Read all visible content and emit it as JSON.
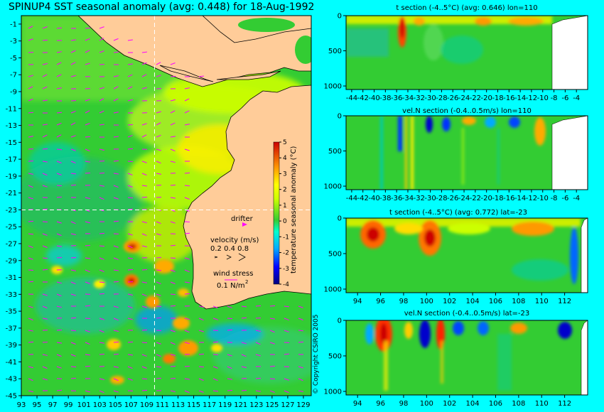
{
  "chart_data": [
    {
      "type": "heatmap",
      "title": "SPINUP4 SST seasonal anomaly (avg: 0.448) for 18-Aug-1992",
      "x_ticks": [
        "93",
        "95",
        "97",
        "99",
        "101",
        "103",
        "105",
        "107",
        "109",
        "111",
        "113",
        "115",
        "117",
        "119",
        "121",
        "123",
        "125",
        "127",
        "129"
      ],
      "y_ticks": [
        "-1",
        "-3",
        "-5",
        "-7",
        "-9",
        "-11",
        "-13",
        "-15",
        "-17",
        "-19",
        "-21",
        "-23",
        "-25",
        "-27",
        "-29",
        "-31",
        "-33",
        "-35",
        "-37",
        "-39",
        "-41",
        "-43",
        "-45"
      ],
      "xlim": [
        93,
        130
      ],
      "ylim": [
        -45,
        0
      ],
      "colorbar": {
        "label": "temperature seasonal anomaly (°C)",
        "ticks": [
          "5",
          "4",
          "3",
          "2",
          "1",
          "0",
          "-1",
          "-2",
          "-3",
          "-4"
        ],
        "range": [
          -4,
          5
        ]
      },
      "annotations": {
        "drifter": "drifter",
        "velocity_label": "velocity (m/s)",
        "velocity_scale": "0.2 0.4 0.8",
        "wind_label": "wind stress",
        "wind_scale": "0.1 N/m",
        "wind_exp": "2"
      },
      "crosshair": {
        "lon": 110,
        "lat": -23
      },
      "copyright": "© Copyright CSIRO 2005"
    },
    {
      "type": "heatmap",
      "title": "t section (-4..5°C) (avg: 0.646) lon=110",
      "x_ticks": [
        "-44",
        "-42",
        "-40",
        "-38",
        "-36",
        "-34",
        "-32",
        "-30",
        "-28",
        "-26",
        "-24",
        "-22",
        "-20",
        "-18",
        "-16",
        "-14",
        "-12",
        "-10",
        "-8",
        "-6",
        "-4"
      ],
      "y_ticks": [
        "0",
        "500",
        "1000"
      ],
      "xlim": [
        -45,
        -2
      ],
      "ylim": [
        1050,
        0
      ]
    },
    {
      "type": "heatmap",
      "title": "vel.N section (-0.4..0.5m/s) lon=110",
      "x_ticks": [
        "-44",
        "-42",
        "-40",
        "-38",
        "-36",
        "-34",
        "-32",
        "-30",
        "-28",
        "-26",
        "-24",
        "-22",
        "-20",
        "-18",
        "-16",
        "-14",
        "-12",
        "-10",
        "-8",
        "-6",
        "-4"
      ],
      "y_ticks": [
        "0",
        "500",
        "1000"
      ],
      "xlim": [
        -45,
        -2
      ],
      "ylim": [
        1050,
        0
      ]
    },
    {
      "type": "heatmap",
      "title": "t section (-4..5°C) (avg: 0.772) lat=-23",
      "x_ticks": [
        "94",
        "96",
        "98",
        "100",
        "102",
        "104",
        "106",
        "108",
        "110",
        "112"
      ],
      "y_ticks": [
        "0",
        "500",
        "1000"
      ],
      "xlim": [
        93,
        114
      ],
      "ylim": [
        1050,
        0
      ]
    },
    {
      "type": "heatmap",
      "title": "vel.N section (-0.4..0.5m/s) lat=-23",
      "x_ticks": [
        "94",
        "96",
        "98",
        "100",
        "102",
        "104",
        "106",
        "108",
        "110",
        "112"
      ],
      "y_ticks": [
        "0",
        "500",
        "1000"
      ],
      "xlim": [
        93,
        114
      ],
      "ylim": [
        1050,
        0
      ]
    }
  ],
  "colors": {
    "background": "#00ffff",
    "land": "#ffcc99",
    "ocean": "#33cc33",
    "vector": "#ff00ff",
    "scale": [
      "#000080",
      "#0000ff",
      "#0099ff",
      "#00ccff",
      "#00ff99",
      "#33cc33",
      "#ccff00",
      "#ffff00",
      "#ffaa00",
      "#ff5500",
      "#cc0000"
    ]
  }
}
